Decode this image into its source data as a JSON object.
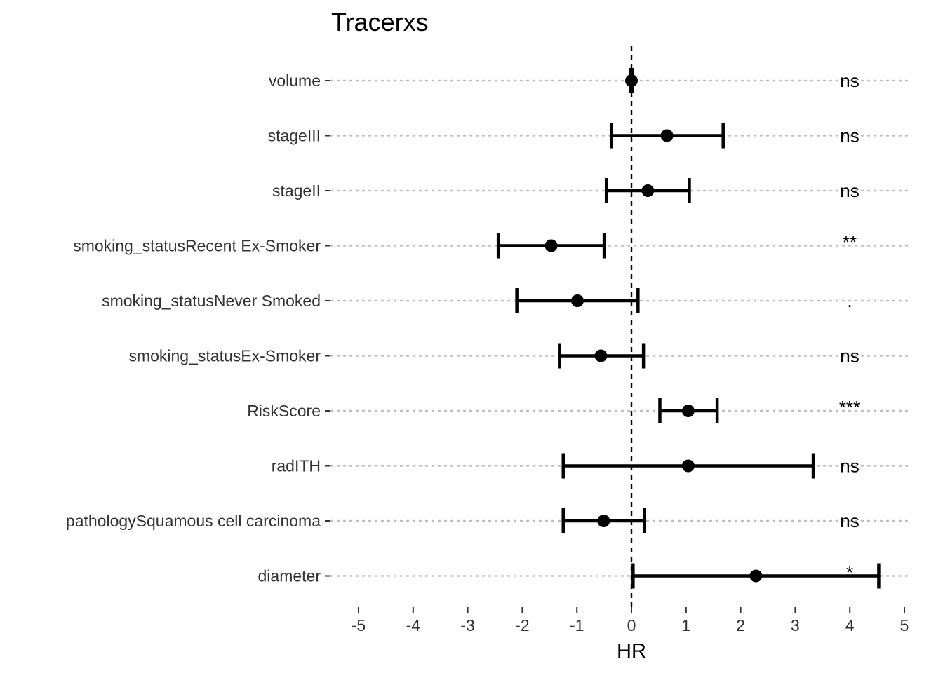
{
  "chart_data": {
    "type": "forest",
    "title": "Tracerxs",
    "xlabel": "HR",
    "ylabel": "",
    "xlim": [
      -5.5,
      5.5
    ],
    "x_ticks": [
      -5,
      -4,
      -3,
      -2,
      -1,
      0,
      1,
      2,
      3,
      4,
      5
    ],
    "x_tick_labels": [
      "-5",
      "-4",
      "-3",
      "-2",
      "-1",
      "0",
      "1",
      "2",
      "3",
      "4",
      "5"
    ],
    "reference_line": 0,
    "grid": "horizontal dotted",
    "variables": [
      {
        "label": "volume",
        "estimate": 0.0,
        "lower": -0.01,
        "upper": 0.01,
        "significance": "ns"
      },
      {
        "label": "stageIII",
        "estimate": 0.65,
        "lower": -0.37,
        "upper": 1.68,
        "significance": "ns"
      },
      {
        "label": "stageII",
        "estimate": 0.3,
        "lower": -0.46,
        "upper": 1.06,
        "significance": "ns"
      },
      {
        "label": "smoking_statusRecent Ex-Smoker",
        "estimate": -1.47,
        "lower": -2.44,
        "upper": -0.5,
        "significance": "**"
      },
      {
        "label": "smoking_statusNever Smoked",
        "estimate": -0.99,
        "lower": -2.1,
        "upper": 0.12,
        "significance": "."
      },
      {
        "label": "smoking_statusEx-Smoker",
        "estimate": -0.56,
        "lower": -1.32,
        "upper": 0.22,
        "significance": "ns"
      },
      {
        "label": "RiskScore",
        "estimate": 1.04,
        "lower": 0.52,
        "upper": 1.57,
        "significance": "***"
      },
      {
        "label": "radITH",
        "estimate": 1.04,
        "lower": -1.25,
        "upper": 3.33,
        "significance": "ns"
      },
      {
        "label": "pathologySquamous cell carcinoma",
        "estimate": -0.51,
        "lower": -1.25,
        "upper": 0.24,
        "significance": "ns"
      },
      {
        "label": "diameter",
        "estimate": 2.28,
        "lower": 0.03,
        "upper": 4.53,
        "significance": "*"
      }
    ]
  }
}
